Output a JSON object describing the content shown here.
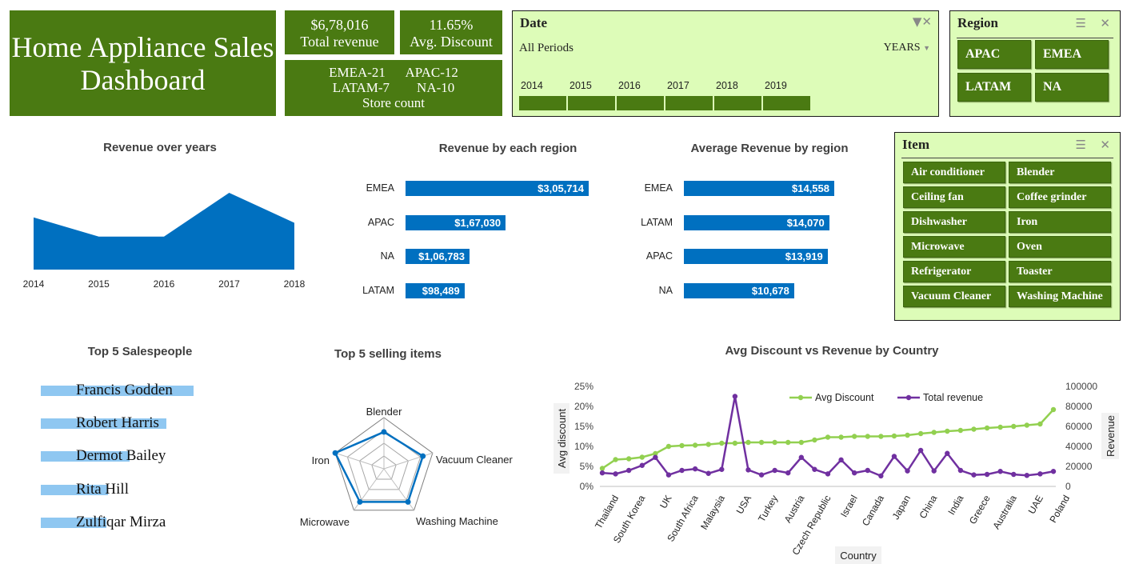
{
  "title": "Home Appliance Sales Dashboard",
  "kpis": {
    "total_revenue_value": "$6,78,016",
    "total_revenue_label": "Total revenue",
    "avg_discount_value": "11.65%",
    "avg_discount_label": "Avg. Discount",
    "store_line1": "EMEA-21      APAC-12",
    "store_line2": "LATAM-7        NA-10",
    "store_label": "Store count"
  },
  "date_slicer": {
    "title": "Date",
    "period_label": "All Periods",
    "level_label": "YEARS",
    "years": [
      "2014",
      "2015",
      "2016",
      "2017",
      "2018",
      "2019"
    ]
  },
  "region_slicer": {
    "title": "Region",
    "items": [
      "APAC",
      "EMEA",
      "LATAM",
      "NA"
    ]
  },
  "item_slicer": {
    "title": "Item",
    "items": [
      "Air conditioner",
      "Blender",
      "Ceiling fan",
      "Coffee grinder",
      "Dishwasher",
      "Iron",
      "Microwave",
      "Oven",
      "Refrigerator",
      "Toaster",
      "Vacuum Cleaner",
      "Washing Machine"
    ]
  },
  "colors": {
    "brand_green": "#4a7a12",
    "slicer_bg": "#ddfcb8",
    "chart_blue": "#0070c0",
    "light_blue": "#8fc7f1",
    "line_green": "#92d050",
    "line_purple": "#7030a0"
  },
  "chart_data": [
    {
      "type": "area",
      "title": "Revenue over years",
      "categories": [
        "2014",
        "2015",
        "2016",
        "2017",
        "2018"
      ],
      "values": [
        0.68,
        0.43,
        0.43,
        1.0,
        0.61
      ],
      "values_note_unit": "relative"
    },
    {
      "type": "bar",
      "title": "Revenue by each region",
      "categories": [
        "EMEA",
        "APAC",
        "NA",
        "LATAM"
      ],
      "values": [
        305714,
        167030,
        106783,
        98489
      ],
      "labels": [
        "$3,05,714",
        "$1,67,030",
        "$1,06,783",
        "$98,489"
      ]
    },
    {
      "type": "bar",
      "title": "Average Revenue by region",
      "categories": [
        "EMEA",
        "LATAM",
        "APAC",
        "NA"
      ],
      "values": [
        14558,
        14070,
        13919,
        10678
      ],
      "labels": [
        "$14,558",
        "$14,070",
        "$13,919",
        "$10,678"
      ]
    },
    {
      "type": "bar",
      "title": "Top 5 Salespeople",
      "categories": [
        "Francis Godden",
        "Robert Harris",
        "Dermot Bailey",
        "Rita Hill",
        "Zulfiqar Mirza"
      ],
      "values": [
        1.0,
        0.82,
        0.58,
        0.44,
        0.43
      ]
    },
    {
      "type": "radar",
      "title": "Top 5 selling items",
      "categories": [
        "Blender",
        "Vacuum Cleaner",
        "Washing Machine",
        "Microwave",
        "Iron"
      ],
      "values": [
        0.72,
        0.8,
        0.8,
        0.8,
        1.0
      ]
    },
    {
      "type": "line",
      "title": "Avg Discount vs Revenue by Country",
      "xlabel": "Country",
      "ylabel": "Avg discount",
      "y2label": "Revenue",
      "x_tick_labels": [
        "Thailand",
        "South Korea",
        "UK",
        "South Africa",
        "Malaysia",
        "USA",
        "Turkey",
        "Austria",
        "Czech Republic",
        "Israel",
        "Canada",
        "Japan",
        "China",
        "India",
        "Greece",
        "Australia",
        "UAE",
        "Poland"
      ],
      "y_ticks": [
        "0%",
        "5%",
        "10%",
        "15%",
        "20%",
        "25%"
      ],
      "y2_ticks": [
        "0",
        "20000",
        "40000",
        "60000",
        "80000",
        "100000"
      ],
      "ylim": [
        0,
        25
      ],
      "y2lim": [
        0,
        100000
      ],
      "series": [
        {
          "name": "Avg Discount",
          "axis": "left",
          "values": [
            4.5,
            6.7,
            6.9,
            7.3,
            8.2,
            10,
            10.2,
            10.3,
            10.5,
            10.8,
            10.8,
            11,
            11,
            11,
            11,
            11,
            11.6,
            12.3,
            12.3,
            12.5,
            12.5,
            12.5,
            12.6,
            12.8,
            13.2,
            13.5,
            13.8,
            14,
            14.3,
            14.6,
            14.8,
            15,
            15.3,
            15.6,
            19.2
          ]
        },
        {
          "name": "Total revenue",
          "axis": "right",
          "values": [
            13500,
            12500,
            16000,
            21000,
            29000,
            11500,
            16000,
            17500,
            13000,
            17000,
            90000,
            16500,
            11500,
            16000,
            13500,
            29000,
            17000,
            12500,
            26500,
            13500,
            16000,
            10500,
            30000,
            15500,
            36000,
            15500,
            33000,
            16000,
            11500,
            12000,
            15000,
            12000,
            11000,
            12500,
            15000
          ]
        }
      ]
    }
  ]
}
